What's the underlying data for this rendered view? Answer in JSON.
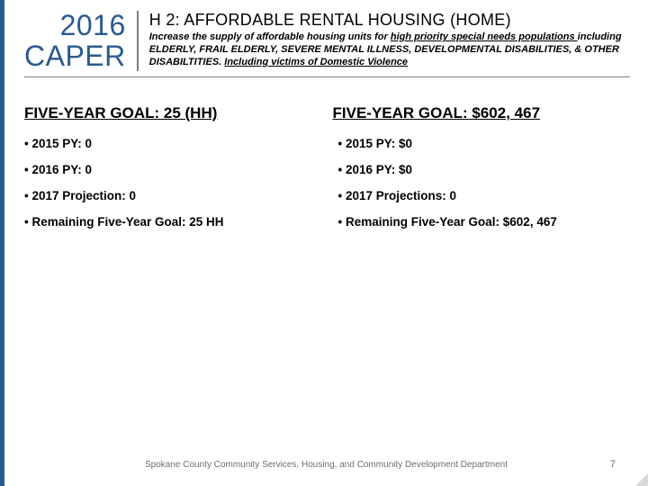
{
  "accent_color": "#2a5b8f",
  "caper": {
    "year": "2016",
    "label": "CAPER"
  },
  "title": {
    "main": "H 2: AFFORDABLE RENTAL HOUSING (HOME)",
    "sub_before_u1": "Increase the supply of affordable housing units for ",
    "u1": "high priority special needs populations ",
    "sub_mid": "including ELDERLY, FRAIL ELDERLY, SEVERE MENTAL ILLNESS, DEVELOPMENTAL DISABILITIES, & OTHER DISABILTITIES. ",
    "u2": "Including victims of Domestic Violence"
  },
  "left": {
    "heading": "FIVE-YEAR GOAL: 25 (HH)",
    "items": [
      "2015 PY: 0",
      "2016 PY: 0",
      "2017 Projection: 0",
      "Remaining Five-Year Goal: 25 HH"
    ]
  },
  "right": {
    "heading": "FIVE-YEAR GOAL: $602, 467",
    "items": [
      "2015 PY: $0",
      "2016 PY: $0",
      "2017 Projections: 0",
      "Remaining Five-Year Goal: $602, 467"
    ]
  },
  "footer": "Spokane County Community Services, Housing, and Community Development Department",
  "page_number": "7"
}
